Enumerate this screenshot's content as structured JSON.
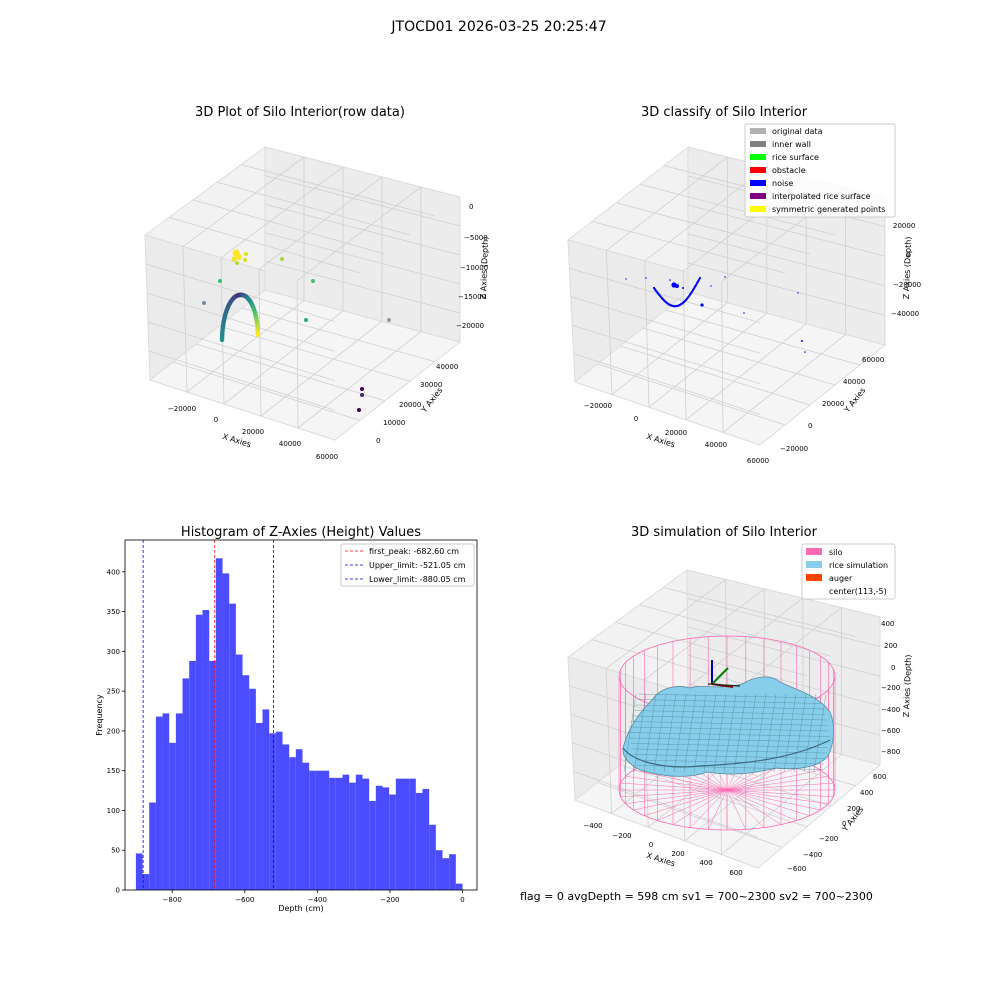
{
  "figure": {
    "suptitle": "JTOCD01 2026-03-25 20:25:47",
    "info_line": "flag = 0     avgDepth = 598 cm  sv1 = 700~2300  sv2 = 700~2300"
  },
  "colors": {
    "original_data": "#b0b0b0",
    "inner_wall": "#808080",
    "rice_surface": "#00ff00",
    "obstacle": "#ff0000",
    "noise": "#0000ff",
    "interpolated_rice_surface": "#800080",
    "symmetric_generated_points": "#ffff00",
    "silo": "#ff69b4",
    "rice_simulation": "#87ceeb",
    "auger": "#ff4500",
    "hist_bar": "#4b4bff"
  },
  "chart_data": [
    {
      "type": "scatter",
      "title": "3D Plot of Silo Interior(row data)",
      "xlabel": "X Axies",
      "ylabel": "Y Axies",
      "zlabel": "Z Axies (Depth)",
      "x_ticks": [
        "−20000",
        "0",
        "20000",
        "40000",
        "60000"
      ],
      "y_ticks": [
        "0",
        "10000",
        "20000",
        "30000",
        "40000"
      ],
      "z_ticks": [
        "0",
        "−5000",
        "−10000",
        "−15000",
        "−20000"
      ],
      "grid": true,
      "colormap": "viridis"
    },
    {
      "type": "scatter",
      "title": "3D classify of Silo Interior",
      "xlabel": "X Axies",
      "ylabel": "Y Axies",
      "zlabel": "Z Axies (Depth)",
      "x_ticks": [
        "−20000",
        "0",
        "20000",
        "40000",
        "60000"
      ],
      "y_ticks": [
        "−20000",
        "0",
        "20000",
        "40000",
        "60000"
      ],
      "z_ticks": [
        "20000",
        "0",
        "−20000",
        "−40000"
      ],
      "legend": [
        "original data",
        "inner wall",
        "rice surface",
        "obstacle",
        "noise",
        "interpolated rice surface",
        "symmetric generated points"
      ],
      "legend_placement": "top-right",
      "grid": true
    },
    {
      "type": "bar",
      "title": "Histogram of Z-Axies (Height) Values",
      "xlabel": "Depth (cm)",
      "ylabel": "Frequency",
      "x_ticks": [
        "−800",
        "−600",
        "−400",
        "−200",
        "0"
      ],
      "x_tick_values": [
        -800,
        -600,
        -400,
        -200,
        0
      ],
      "y_ticks": [
        "0",
        "50",
        "100",
        "150",
        "200",
        "250",
        "300",
        "350",
        "400"
      ],
      "y_tick_values": [
        0,
        50,
        100,
        150,
        200,
        250,
        300,
        350,
        400
      ],
      "xlim": [
        -930,
        40
      ],
      "ylim": [
        0,
        440
      ],
      "bin_range": [
        -900,
        0
      ],
      "values": [
        46,
        20,
        110,
        218,
        222,
        185,
        222,
        266,
        288,
        346,
        352,
        288,
        417,
        398,
        360,
        296,
        270,
        253,
        210,
        227,
        197,
        199,
        183,
        167,
        177,
        160,
        150,
        150,
        150,
        141,
        141,
        145,
        135,
        145,
        140,
        112,
        131,
        129,
        120,
        140,
        140,
        140,
        122,
        127,
        82,
        50,
        40,
        45,
        8
      ],
      "vlines": [
        {
          "label": "first_peak: -682.60 cm",
          "x": -682.6,
          "color": "#ff0000"
        },
        {
          "label": "Upper_limit: -521.05 cm",
          "x": -521.05,
          "color": "#0000ff"
        },
        {
          "label": "Lower_limit: -880.05 cm",
          "x": -880.05,
          "color": "#0000ff"
        }
      ],
      "legend_placement": "top-right"
    },
    {
      "type": "scatter",
      "title": "3D simulation of Silo Interior",
      "xlabel": "X Axies",
      "ylabel": "Y Axies",
      "zlabel": "Z Axies (Depth)",
      "x_ticks": [
        "−400",
        "−200",
        "0",
        "200",
        "400",
        "600"
      ],
      "y_ticks": [
        "−600",
        "−400",
        "−200",
        "0",
        "200",
        "400",
        "600"
      ],
      "z_ticks": [
        "400",
        "200",
        "0",
        "−200",
        "−400",
        "−600",
        "−800"
      ],
      "legend": [
        "silo",
        "rice simulation",
        "auger",
        "center(113,-5)"
      ],
      "legend_placement": "top-right",
      "grid": true
    }
  ]
}
